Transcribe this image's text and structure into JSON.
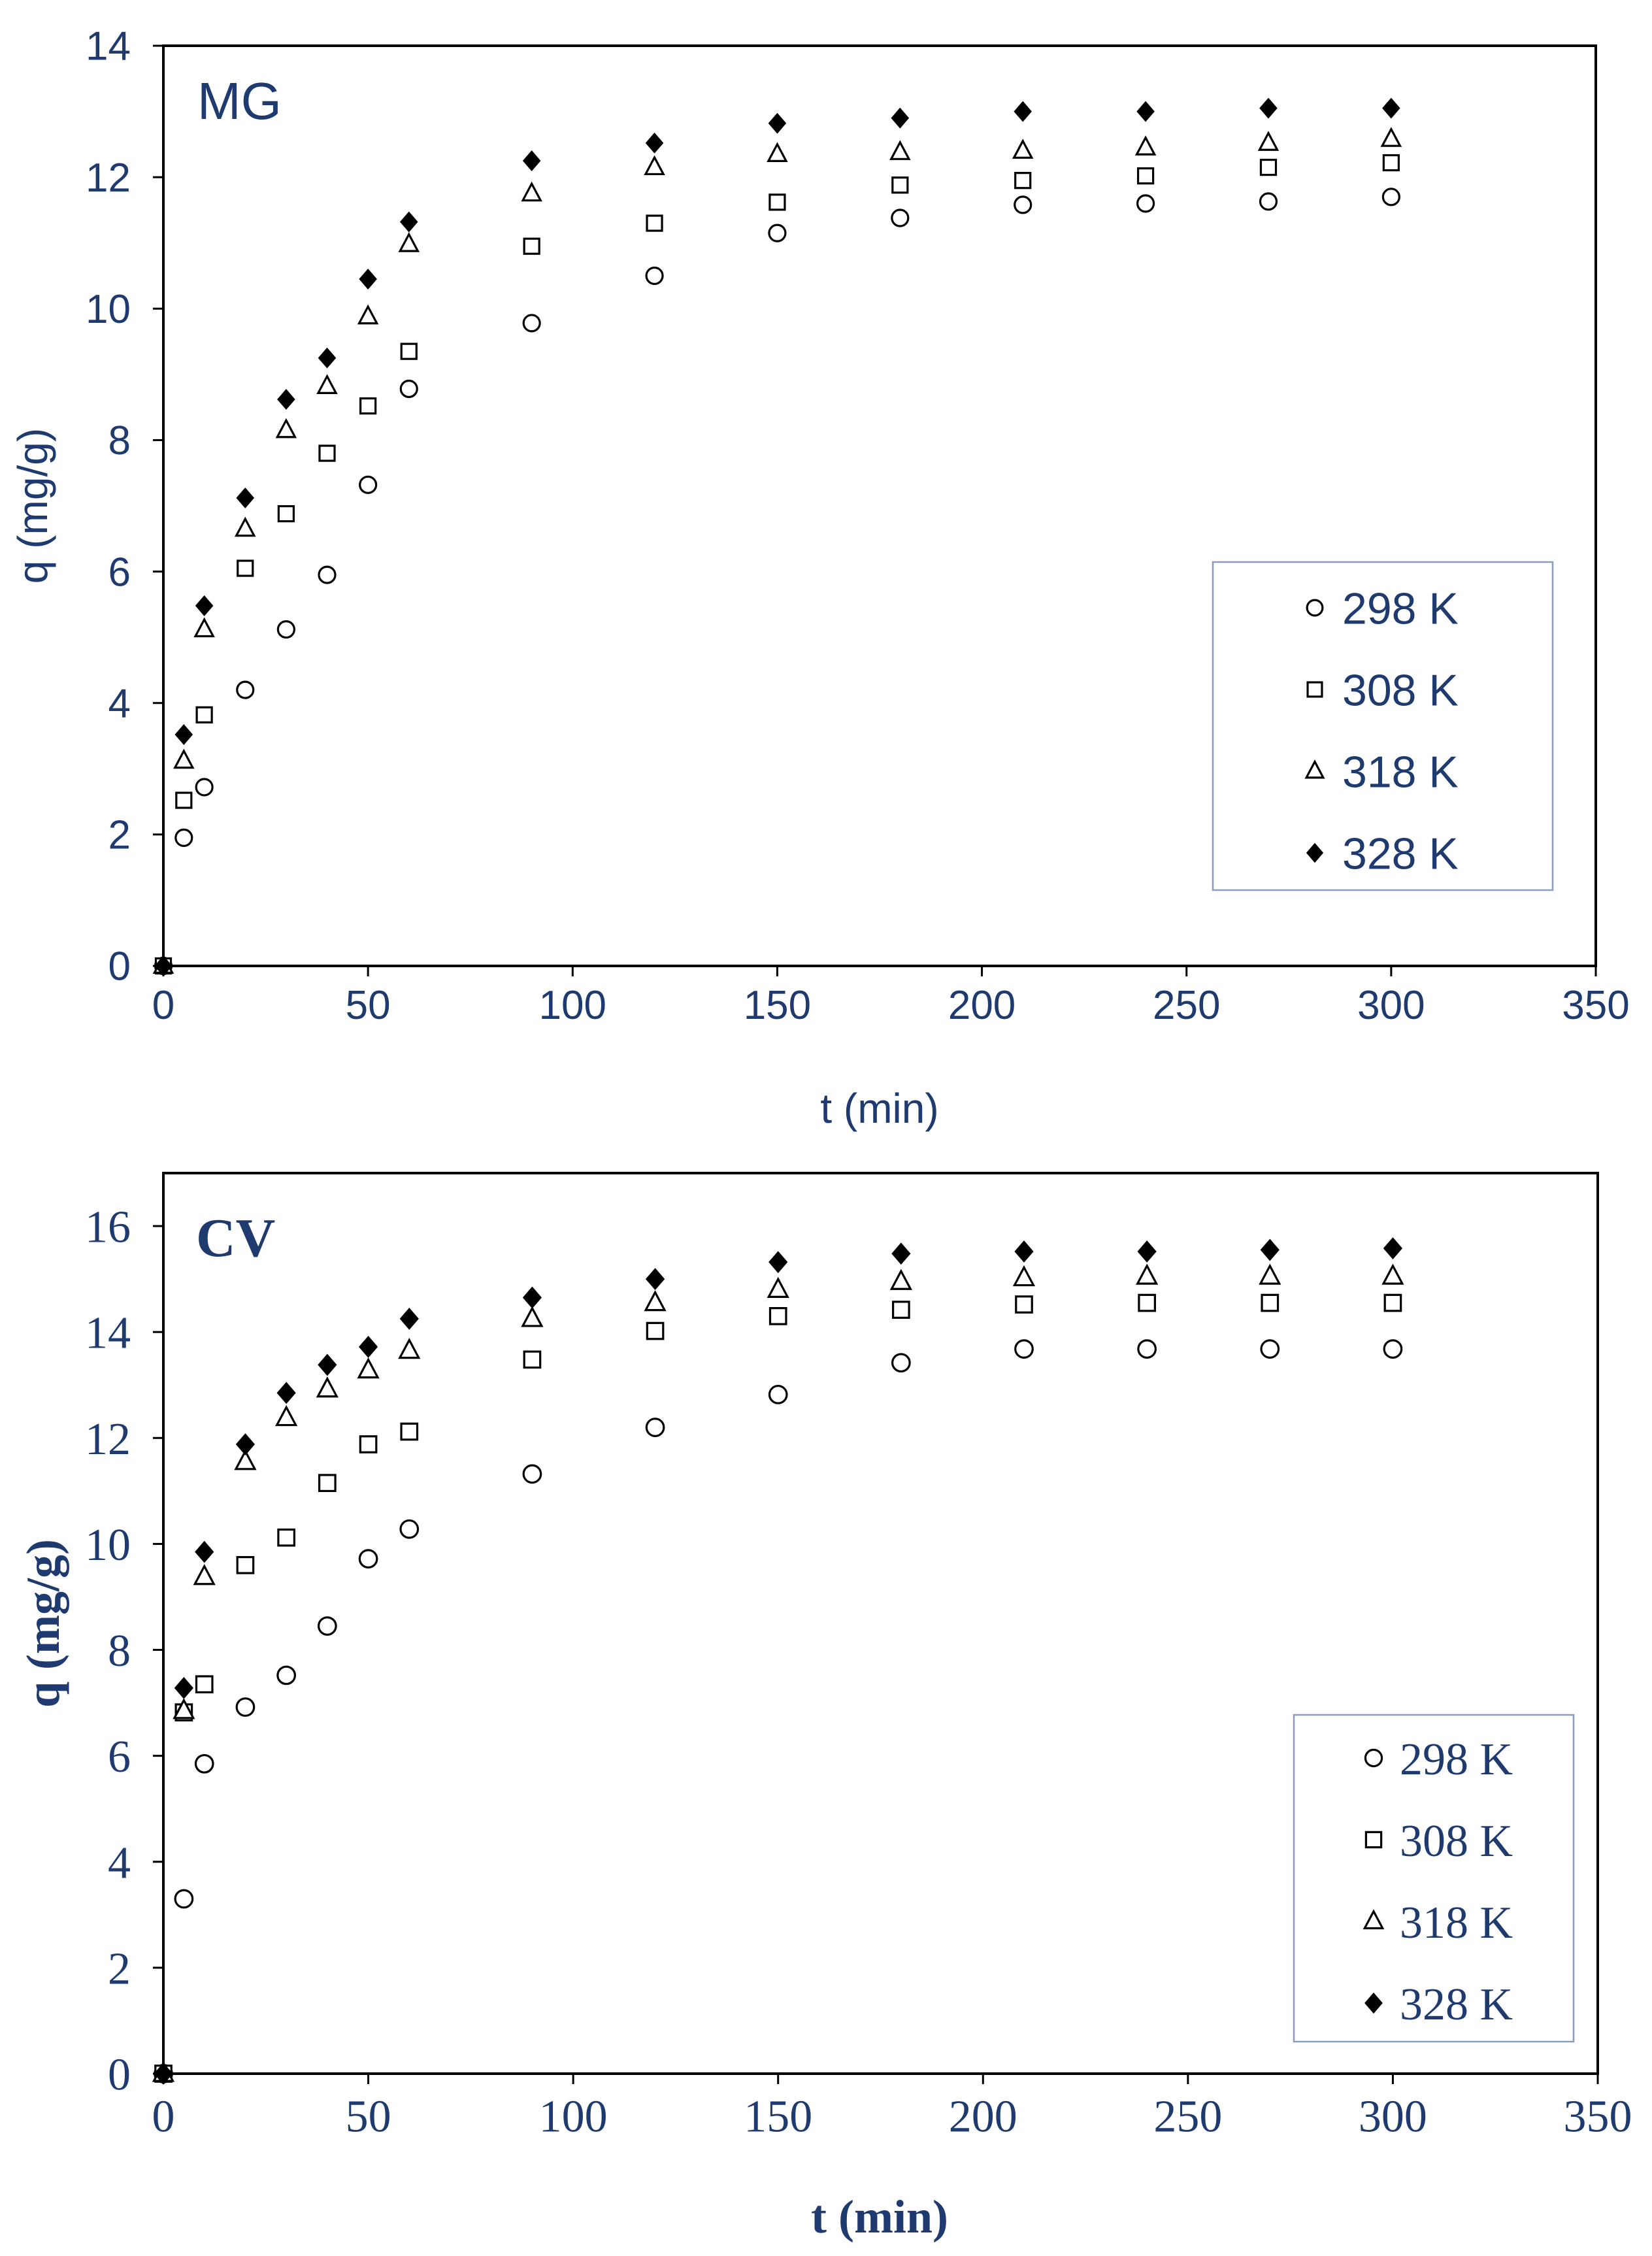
{
  "colors": {
    "text": "#1f3a6e",
    "frame": "#000000",
    "legend_border": "#8a9bbd",
    "marker": "#000000"
  },
  "chart_data": [
    {
      "type": "scatter",
      "title": "MG",
      "xlabel": "t (min)",
      "ylabel": "q (mg/g)",
      "xlim": [
        0,
        350
      ],
      "ylim": [
        0,
        14
      ],
      "xticks": [
        0,
        50,
        100,
        150,
        200,
        250,
        300,
        350
      ],
      "yticks": [
        0,
        2,
        4,
        6,
        8,
        10,
        12,
        14
      ],
      "grid": false,
      "legend_position": "right",
      "x": [
        0,
        5,
        10,
        20,
        30,
        40,
        50,
        60,
        90,
        120,
        150,
        180,
        210,
        240,
        270,
        300
      ],
      "series": [
        {
          "name": "298 K",
          "marker": "circle",
          "values": [
            0,
            1.95,
            2.72,
            4.2,
            5.12,
            5.95,
            7.32,
            8.78,
            9.78,
            10.5,
            11.15,
            11.38,
            11.58,
            11.6,
            11.63,
            11.7
          ]
        },
        {
          "name": "308 K",
          "marker": "square",
          "values": [
            0,
            2.52,
            3.82,
            6.05,
            6.88,
            7.8,
            8.52,
            9.35,
            10.95,
            11.3,
            11.62,
            11.88,
            11.95,
            12.02,
            12.15,
            12.22
          ]
        },
        {
          "name": "318 K",
          "marker": "triangle",
          "values": [
            0,
            3.12,
            5.12,
            6.65,
            8.15,
            8.82,
            9.88,
            10.98,
            11.75,
            12.15,
            12.35,
            12.38,
            12.4,
            12.45,
            12.52,
            12.58
          ]
        },
        {
          "name": "328 K",
          "marker": "diamond",
          "values": [
            0,
            3.52,
            5.48,
            7.12,
            8.62,
            9.25,
            10.45,
            11.32,
            12.25,
            12.52,
            12.82,
            12.9,
            13.0,
            13.0,
            13.05,
            13.05
          ]
        }
      ]
    },
    {
      "type": "scatter",
      "title": "CV",
      "xlabel": "t (min)",
      "ylabel": "q (mg/g)",
      "xlim": [
        0,
        350
      ],
      "ylim": [
        0,
        17
      ],
      "xticks": [
        0,
        50,
        100,
        150,
        200,
        250,
        300,
        350
      ],
      "yticks": [
        0,
        2,
        4,
        6,
        8,
        10,
        12,
        14,
        16
      ],
      "grid": false,
      "legend_position": "bottom-right",
      "x": [
        0,
        5,
        10,
        20,
        30,
        40,
        50,
        60,
        90,
        120,
        150,
        180,
        210,
        240,
        270,
        300
      ],
      "series": [
        {
          "name": "298 K",
          "marker": "circle",
          "values": [
            0,
            3.3,
            5.85,
            6.92,
            7.52,
            8.45,
            9.72,
            10.28,
            11.32,
            12.2,
            12.82,
            13.42,
            13.68,
            13.68,
            13.68,
            13.68
          ]
        },
        {
          "name": "308 K",
          "marker": "square",
          "values": [
            0,
            6.82,
            7.35,
            9.6,
            10.12,
            11.15,
            11.88,
            12.12,
            13.48,
            14.02,
            14.3,
            14.42,
            14.52,
            14.55,
            14.55,
            14.55
          ]
        },
        {
          "name": "318 K",
          "marker": "triangle",
          "values": [
            0,
            6.85,
            9.38,
            11.55,
            12.38,
            12.92,
            13.28,
            13.65,
            14.25,
            14.55,
            14.8,
            14.95,
            15.02,
            15.05,
            15.05,
            15.05
          ]
        },
        {
          "name": "328 K",
          "marker": "diamond",
          "values": [
            0,
            7.28,
            9.85,
            11.88,
            12.85,
            13.38,
            13.72,
            14.25,
            14.65,
            15.0,
            15.32,
            15.48,
            15.52,
            15.52,
            15.55,
            15.58
          ]
        }
      ]
    }
  ]
}
